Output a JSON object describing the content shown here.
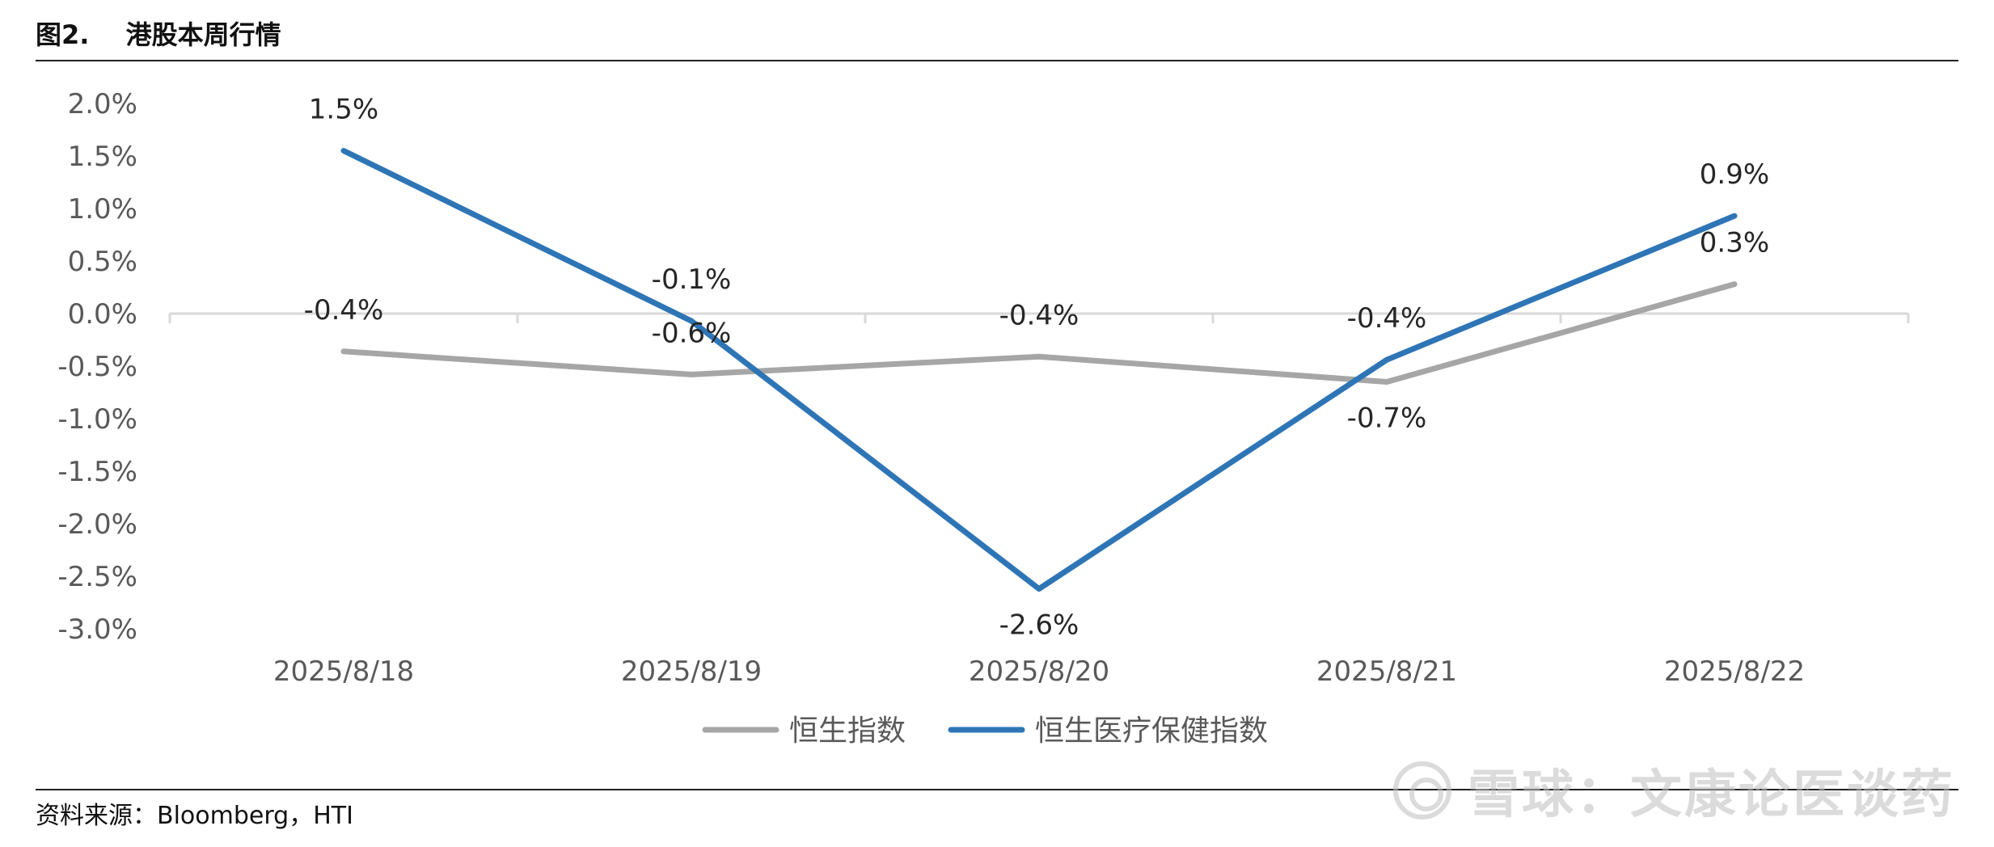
{
  "figure": {
    "number": "图2.",
    "title": "港股本周行情"
  },
  "source_text": "资料来源：Bloomberg，HTI",
  "watermark_text": "雪球：文康论医谈药",
  "colors": {
    "hsi": "#a6a6a6",
    "healthcare": "#2e75b6",
    "gridline": "#d9d9d9",
    "axis_text": "#595959",
    "label_text": "#262626"
  },
  "chart_data": {
    "type": "line",
    "categories": [
      "2025/8/18",
      "2025/8/19",
      "2025/8/20",
      "2025/8/21",
      "2025/8/22"
    ],
    "series": [
      {
        "name": "恒生指数",
        "color": "#a6a6a6",
        "values": [
          -0.36,
          -0.58,
          -0.41,
          -0.65,
          0.28
        ],
        "labels": [
          "-0.4%",
          "-0.6%",
          "-0.4%",
          "-0.7%",
          "0.3%"
        ],
        "label_side": [
          "above",
          "above",
          "above",
          "below",
          "above"
        ]
      },
      {
        "name": "恒生医疗保健指数",
        "color": "#2e75b6",
        "values": [
          1.55,
          -0.07,
          -2.62,
          -0.44,
          0.93
        ],
        "labels": [
          "1.5%",
          "-0.1%",
          "-2.6%",
          "-0.4%",
          "0.9%"
        ],
        "label_side": [
          "above",
          "above",
          "below",
          "above",
          "above"
        ]
      }
    ],
    "yticks": [
      "2.0%",
      "1.5%",
      "1.0%",
      "0.5%",
      "0.0%",
      "-0.5%",
      "-1.0%",
      "-1.5%",
      "-2.0%",
      "-2.5%",
      "-3.0%"
    ],
    "ylim": [
      -3.0,
      2.0
    ],
    "grid": "zero-line only",
    "legend": "bottom-center",
    "title": "",
    "xlabel": "",
    "ylabel": ""
  }
}
